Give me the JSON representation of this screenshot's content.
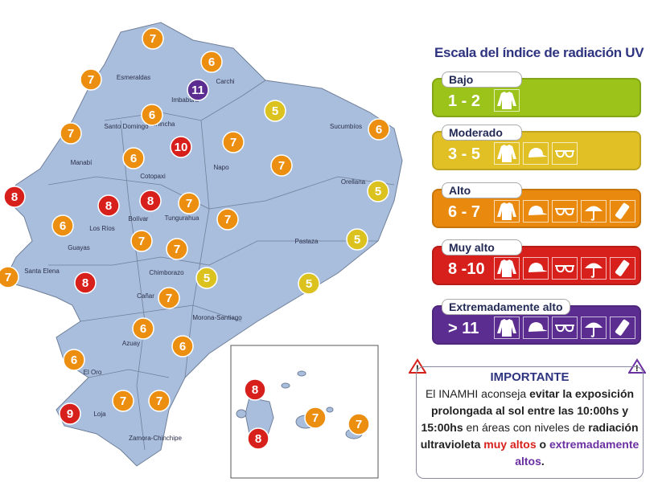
{
  "legend": {
    "title": "Escala del índice de radiación UV",
    "levels": [
      {
        "name": "Bajo",
        "range": "1 - 2",
        "color": "#9bc31a",
        "icons": [
          "shirt-icon"
        ]
      },
      {
        "name": "Moderado",
        "range": "3 - 5",
        "color": "#e0c024",
        "icons": [
          "shirt-icon",
          "cap-icon",
          "sunglasses-icon"
        ]
      },
      {
        "name": "Alto",
        "range": "6 - 7",
        "color": "#e98a0e",
        "icons": [
          "shirt-icon",
          "cap-icon",
          "sunglasses-icon",
          "umbrella-icon",
          "sunscreen-icon"
        ]
      },
      {
        "name": "Muy alto",
        "range": "8 -10",
        "color": "#d7201c",
        "icons": [
          "shirt-icon",
          "cap-icon",
          "sunglasses-icon",
          "umbrella-icon",
          "sunscreen-icon"
        ]
      },
      {
        "name": "Extremadamente alto",
        "range": "> 11",
        "color": "#5c2d91",
        "icons": [
          "shirt-icon",
          "cap-icon",
          "sunglasses-icon",
          "umbrella-icon",
          "sunscreen-icon"
        ]
      }
    ]
  },
  "notice": {
    "title": "IMPORTANTE",
    "p1": "El INAMHI aconseja ",
    "b1": "evitar la exposición prolongada al sol entre las 10:00hs y 15:00hs",
    "p2": " en áreas con niveles de ",
    "b2": "radiación ultravioleta ",
    "red": "muy altos",
    "p3": " o ",
    "purple": "extremadamente altos",
    "end": "."
  },
  "map": {
    "provinces": [
      "Esmeraldas",
      "Carchi",
      "Imbabura",
      "Pichincha",
      "Santo Domingo",
      "Sucumbíos",
      "Manabí",
      "Cotopaxi",
      "Napo",
      "Orellana",
      "Bolívar",
      "Tungurahua",
      "Los Ríos",
      "Pastaza",
      "Guayas",
      "Santa Elena",
      "Chimborazo",
      "Cañar",
      "Morona-Santiago",
      "Azuay",
      "El Oro",
      "Loja",
      "Zamora-Chinchipe"
    ],
    "uv_markers": [
      7,
      6,
      7,
      11,
      5,
      6,
      6,
      7,
      10,
      7,
      6,
      7,
      5,
      8,
      8,
      8,
      7,
      7,
      6,
      7,
      7,
      5,
      7,
      8,
      5,
      5,
      7,
      6,
      6,
      6,
      7,
      7,
      9
    ],
    "galapagos_markers": [
      8,
      7,
      7,
      8
    ],
    "colors": {
      "land": "#a9bedc",
      "border": "#6f7f99",
      "orange": "#ec8e10",
      "red": "#d7201c",
      "yellow": "#dcc21e",
      "purple": "#5c2d91"
    }
  }
}
